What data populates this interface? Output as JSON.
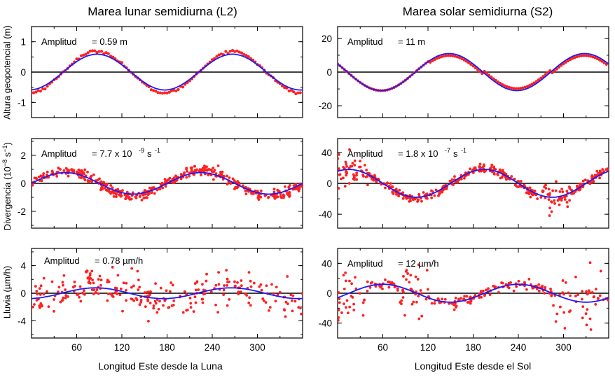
{
  "titles": {
    "left": "Marea lunar semidiurna (L2)",
    "right": "Marea solar semidiurna (S2)"
  },
  "xlabels": {
    "left": "Longitud Este desde la Luna",
    "right": "Longitud Este desde el Sol"
  },
  "ylabels": {
    "row1": "Altura geopotencial (m)",
    "row2_main": "Divergencia (10",
    "row2_exp1": "−8",
    "row2_mid": " s",
    "row2_exp2": "−1",
    "row2_end": ")",
    "row3": "Lluvia (µm/h)"
  },
  "colors": {
    "model": "#1a1aff",
    "obs": "#ff2020",
    "zero": "#000000"
  },
  "chart_data": [
    {
      "id": "L2-geo",
      "type": "scatter",
      "amp_label": "Amplitud",
      "amp_value": "= 0.59 m",
      "xlim": [
        0,
        360
      ],
      "ylim": [
        -1.5,
        1.5
      ],
      "xticks": [
        60,
        120,
        180,
        240,
        300
      ],
      "show_xticklabels": false,
      "yticks": [
        -1,
        0,
        1
      ],
      "ytick_labels": [
        "-1",
        "0",
        "1"
      ],
      "amplitude": 0.59,
      "phase_max_deg": 87,
      "noise": 0.02,
      "obs_bias": 0.05,
      "x": [
        0,
        45,
        87,
        135,
        177,
        225,
        267,
        315,
        357
      ],
      "model": [
        0.57,
        0.06,
        0.59,
        0.06,
        -0.58,
        -0.06,
        0.59,
        0.06,
        0.57
      ],
      "obs_series_name": "",
      "model_series_name": ""
    },
    {
      "id": "S2-geo",
      "type": "scatter",
      "amp_label": "Amplitud",
      "amp_value": "= 11 m",
      "xlim": [
        0,
        360
      ],
      "ylim": [
        -27,
        27
      ],
      "xticks": [
        60,
        120,
        180,
        240,
        300
      ],
      "show_xticklabels": false,
      "yticks": [
        -20,
        0,
        20
      ],
      "ytick_labels": [
        "-20",
        "0",
        "20"
      ],
      "amplitude": 11,
      "phase_max_deg": 148,
      "noise": 0.4,
      "obs_bias": -1.5,
      "x": [
        0,
        58,
        148,
        238,
        328
      ],
      "model": [
        5,
        -11,
        11,
        -11,
        11
      ]
    },
    {
      "id": "L2-div",
      "type": "scatter",
      "amp_label": "Amplitud",
      "amp_value": "= 7.7 x 10",
      "amp_exp": "-9",
      "amp_unit": " s",
      "amp_unit_exp": "-1",
      "xlim": [
        0,
        360
      ],
      "ylim": [
        -3.2,
        3.2
      ],
      "xticks": [
        60,
        120,
        180,
        240,
        300
      ],
      "show_xticklabels": false,
      "yticks": [
        -2,
        0,
        2
      ],
      "ytick_labels": [
        "-2",
        "0",
        "2"
      ],
      "amplitude": 0.77,
      "phase_max_deg": 45,
      "noise": 0.18,
      "obs_bias": 0.1,
      "x": [
        0,
        45,
        135,
        225,
        315
      ],
      "model": [
        0.0,
        0.77,
        -0.77,
        0.77,
        -0.77
      ]
    },
    {
      "id": "S2-div",
      "type": "scatter",
      "amp_label": "Amplitud",
      "amp_value": "= 1.8 x 10",
      "amp_exp": "-7",
      "amp_unit": " s",
      "amp_unit_exp": "-1",
      "xlim": [
        0,
        360
      ],
      "ylim": [
        -58,
        58
      ],
      "xticks": [
        60,
        120,
        180,
        240,
        300
      ],
      "show_xticklabels": false,
      "yticks": [
        -40,
        0,
        40
      ],
      "ytick_labels": [
        "-40",
        "0",
        "40"
      ],
      "amplitude": 18,
      "phase_max_deg": 195,
      "noise": 3,
      "obs_bias": 0,
      "x": [
        0,
        15,
        105,
        195,
        285
      ],
      "model": [
        18,
        18,
        -18,
        18,
        -18
      ]
    },
    {
      "id": "L2-rain",
      "type": "scatter",
      "amp_label": "Amplitud",
      "amp_value": "= 0.78 µm/h",
      "xlim": [
        0,
        360
      ],
      "ylim": [
        -6.5,
        6.5
      ],
      "xticks": [
        60,
        120,
        180,
        240,
        300
      ],
      "show_xticklabels": true,
      "xtick_labels": [
        "60",
        "120",
        "180",
        "240",
        "300"
      ],
      "yticks": [
        -4,
        0,
        4
      ],
      "ytick_labels": [
        "-4",
        "0",
        "4"
      ],
      "amplitude": 0.78,
      "phase_max_deg": 85,
      "noise": 1.1,
      "obs_bias": 0.2,
      "x": [
        0,
        85,
        175,
        265,
        355
      ],
      "model": [
        -0.7,
        0.78,
        -0.78,
        0.78,
        -0.78
      ]
    },
    {
      "id": "S2-rain",
      "type": "scatter",
      "amp_label": "Amplitud",
      "amp_value": "= 12 µm/h",
      "xlim": [
        0,
        360
      ],
      "ylim": [
        -60,
        60
      ],
      "xticks": [
        60,
        120,
        180,
        240,
        300
      ],
      "show_xticklabels": true,
      "xtick_labels": [
        "60",
        "120",
        "180",
        "240",
        "300"
      ],
      "yticks": [
        -40,
        0,
        40
      ],
      "ytick_labels": [
        "-40",
        "0",
        "40"
      ],
      "amplitude": 12,
      "phase_max_deg": 60,
      "noise": 6,
      "obs_bias": 0,
      "x": [
        0,
        60,
        150,
        240,
        330
      ],
      "model": [
        0,
        12,
        -12,
        12,
        -12
      ]
    }
  ]
}
